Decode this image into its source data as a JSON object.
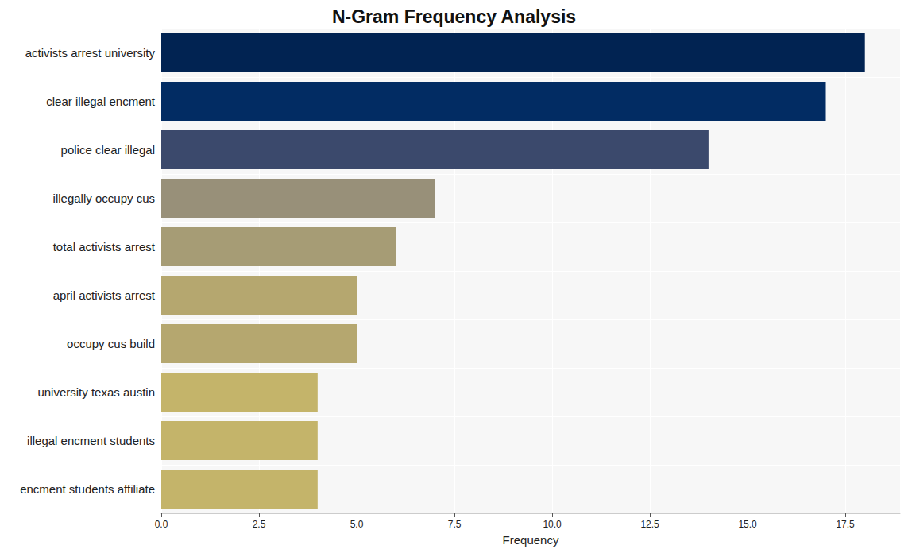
{
  "chart_data": {
    "type": "bar",
    "orientation": "horizontal",
    "title": "N-Gram Frequency Analysis",
    "x_label": "Frequency",
    "categories": [
      "activists arrest university",
      "clear illegal encment",
      "police clear illegal",
      "illegally occupy cus",
      "total activists arrest",
      "april activists arrest",
      "occupy cus build",
      "university texas austin",
      "illegal encment students",
      "encment students affiliate"
    ],
    "values": [
      18,
      17,
      14,
      7,
      6,
      5,
      5,
      4,
      4,
      4
    ],
    "colors": [
      "#012352",
      "#022c63",
      "#3b496c",
      "#989079",
      "#a69c75",
      "#b5a76f",
      "#b5a76f",
      "#c4b46a",
      "#c4b46a",
      "#c4b46a"
    ],
    "xlim": [
      0,
      18.9
    ],
    "xticks": [
      {
        "value": 0,
        "label": "0.0"
      },
      2.5,
      {
        "value": 5,
        "label": "5.0"
      },
      7.5,
      {
        "value": 10,
        "label": "10.0"
      },
      12.5,
      {
        "value": 15,
        "label": "15.0"
      },
      17.5
    ],
    "grid": true
  }
}
